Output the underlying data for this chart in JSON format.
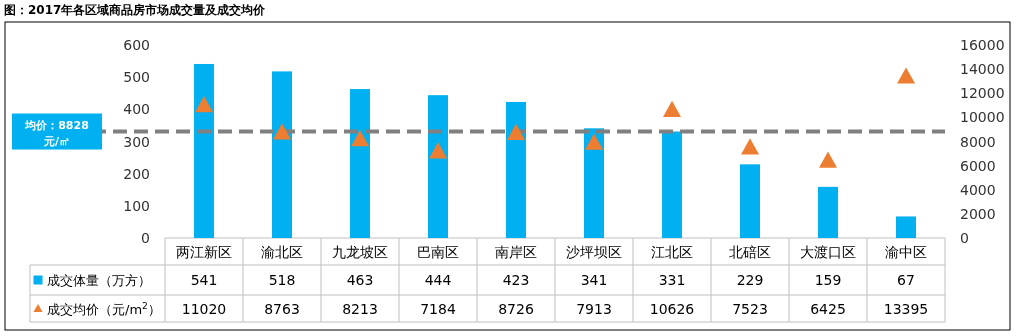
{
  "chart_data": {
    "type": "bar",
    "title": "图：2017年各区域商品房市场成交量及成交均价",
    "categories": [
      "两江新区",
      "渝北区",
      "九龙坡区",
      "巴南区",
      "南岸区",
      "沙坪坝区",
      "江北区",
      "北碚区",
      "大渡口区",
      "渝中区"
    ],
    "series": [
      {
        "name": "成交体量（万方）",
        "color": "#00b0f0",
        "values": [
          541,
          518,
          463,
          444,
          423,
          341,
          331,
          229,
          159,
          67
        ]
      },
      {
        "name": "成交均价（元/m$^{2}$）",
        "type": "scatter",
        "marker": "triangle",
        "axis": "y2",
        "color": "#ed7d31",
        "values": [
          11020,
          8763,
          8213,
          7184,
          8726,
          7913,
          10626,
          7523,
          6425,
          13395
        ]
      }
    ],
    "ylim": [
      0,
      600
    ],
    "yticks": [
      0,
      100,
      200,
      300,
      400,
      500,
      600
    ],
    "y2lim": [
      0,
      16000
    ],
    "y2ticks": [
      0,
      2000,
      4000,
      6000,
      8000,
      10000,
      12000,
      14000,
      16000
    ],
    "ref_lines": [
      {
        "axis": "y2",
        "value": 8828,
        "label": "均价：8828 元/㎡",
        "color": "#808080",
        "line_style": "dashed"
      }
    ],
    "data_labels": true,
    "legend": "bottom left"
  }
}
